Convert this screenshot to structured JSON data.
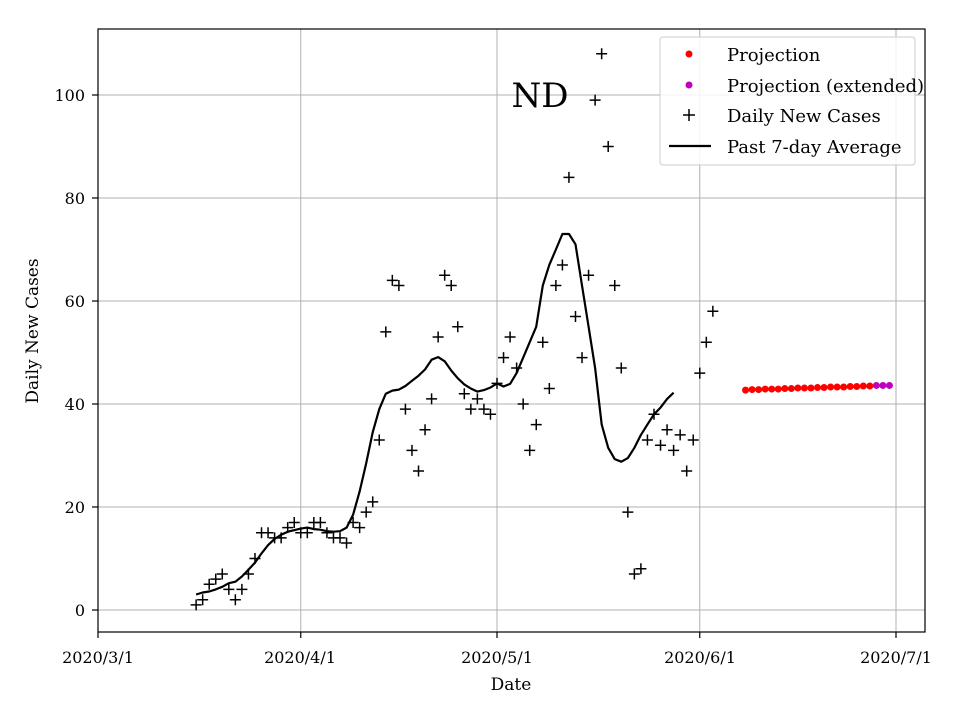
{
  "chart_data": {
    "type": "scatter",
    "title": "ND",
    "xlabel": "Date",
    "ylabel": "Daily New Cases",
    "xlim": [
      "2020-03-01",
      "2020-07-01"
    ],
    "ylim": [
      -4,
      113
    ],
    "x_ticks": [
      "2020/3/1",
      "2020/4/1",
      "2020/5/1",
      "2020/6/1",
      "2020/7/1"
    ],
    "y_ticks": [
      0,
      20,
      40,
      60,
      80,
      100
    ],
    "grid": true,
    "legend_position": "top-right",
    "legend": [
      {
        "label": "Projection",
        "color": "#ff0000",
        "marker": "dot"
      },
      {
        "label": "Projection (extended)",
        "color": "#bf00bf",
        "marker": "dot"
      },
      {
        "label": "Daily New Cases",
        "color": "#000000",
        "marker": "plus"
      },
      {
        "label": "Past 7-day Average",
        "color": "#000000",
        "marker": "line"
      }
    ],
    "series": [
      {
        "name": "Daily New Cases",
        "kind": "plus",
        "color": "#000000",
        "x_start": "2020-03-16",
        "values": [
          1,
          2,
          5,
          6,
          7,
          4,
          2,
          4,
          7,
          10,
          15,
          15,
          14,
          14,
          16,
          17,
          15,
          15,
          17,
          17,
          15,
          14,
          14,
          13,
          17,
          16,
          19,
          21,
          33,
          54,
          64,
          63,
          39,
          31,
          27,
          35,
          41,
          53,
          65,
          63,
          55,
          42,
          39,
          41,
          39,
          38,
          44,
          49,
          53,
          47,
          40,
          31,
          36,
          52,
          43,
          63,
          67,
          84,
          57,
          49,
          65,
          99,
          108,
          90,
          63,
          47,
          19,
          7,
          8,
          33,
          38,
          32,
          35,
          31,
          34,
          27,
          33,
          46,
          52,
          58
        ]
      },
      {
        "name": "Past 7-day Average",
        "kind": "line",
        "color": "#000000",
        "x_start": "2020-03-16",
        "values": [
          3,
          3.4,
          3.6,
          4,
          4.5,
          5.2,
          5.5,
          6.5,
          7.8,
          9.2,
          11,
          12.6,
          13.8,
          14.6,
          15.2,
          15.5,
          15.8,
          16,
          15.7,
          15.6,
          15.3,
          15.2,
          15.3,
          16,
          18.5,
          23,
          28.5,
          34.5,
          39,
          42,
          42.6,
          42.8,
          43.5,
          44.5,
          45.5,
          46.7,
          48.6,
          49.1,
          48.3,
          46.5,
          45,
          43.8,
          43,
          42.4,
          42.7,
          43.2,
          44,
          43.4,
          43.9,
          46,
          49,
          52,
          55,
          63,
          67,
          70,
          73,
          73,
          71,
          63,
          55,
          47,
          36,
          31.5,
          29.3,
          28.8,
          29.5,
          31.5,
          34,
          36,
          38,
          39.3,
          41,
          42.2
        ]
      },
      {
        "name": "Projection",
        "kind": "dot",
        "color": "#ff0000",
        "x_start": "2020-06-08",
        "values": [
          42.7,
          42.8,
          42.8,
          42.9,
          42.9,
          42.9,
          43,
          43,
          43.1,
          43.1,
          43.1,
          43.2,
          43.2,
          43.3,
          43.3,
          43.3,
          43.4,
          43.4,
          43.5,
          43.5
        ]
      },
      {
        "name": "Projection (extended)",
        "kind": "dot",
        "color": "#bf00bf",
        "x_start": "2020-06-28",
        "values": [
          43.6,
          43.6,
          43.6
        ]
      }
    ]
  }
}
